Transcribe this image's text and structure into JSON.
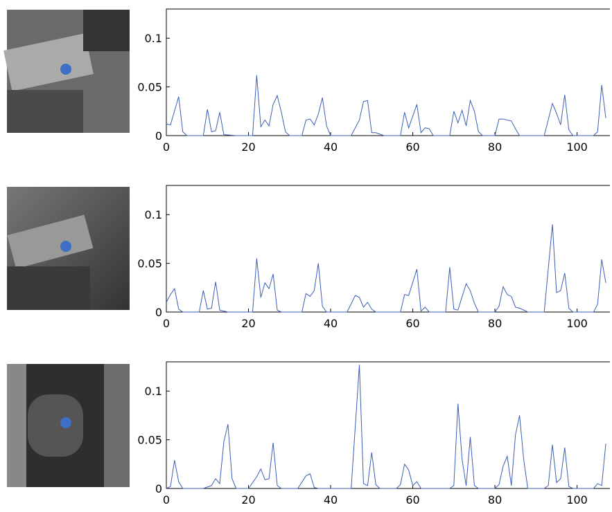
{
  "chart_data": [
    {
      "type": "line",
      "color": "#3a5db5",
      "xlim": [
        0,
        108
      ],
      "xticks": [
        0,
        20,
        40,
        60,
        80,
        100
      ],
      "ylim": [
        0,
        0.13
      ],
      "yticks": [
        0,
        0.05,
        0.1
      ],
      "x": [
        0,
        1,
        3,
        4,
        5,
        9,
        10,
        11,
        12,
        13,
        14,
        17,
        21,
        22,
        23,
        24,
        25,
        26,
        27,
        28,
        29,
        30,
        33,
        34,
        35,
        36,
        37,
        38,
        39,
        40,
        45,
        47,
        48,
        49,
        50,
        51,
        53,
        57,
        58,
        59,
        61,
        62,
        63,
        64,
        65,
        69,
        70,
        71,
        72,
        73,
        74,
        75,
        76,
        77,
        80,
        81,
        82,
        84,
        85,
        86,
        92,
        94,
        95,
        96,
        97,
        98,
        99,
        104,
        105,
        106,
        107
      ],
      "values": [
        0.012,
        0.011,
        0.04,
        0.004,
        0,
        0,
        0.027,
        0.004,
        0.005,
        0.024,
        0.001,
        0,
        0,
        0.062,
        0.009,
        0.016,
        0.01,
        0.032,
        0.041,
        0.024,
        0.004,
        0,
        0,
        0.016,
        0.017,
        0.011,
        0.022,
        0.039,
        0.01,
        0,
        0,
        0.016,
        0.035,
        0.036,
        0.003,
        0.003,
        0,
        0,
        0.024,
        0.008,
        0.032,
        0.003,
        0.008,
        0.007,
        0,
        0,
        0.025,
        0.013,
        0.026,
        0.01,
        0.036,
        0.025,
        0.004,
        0,
        0,
        0.017,
        0.017,
        0.015,
        0.007,
        0,
        0,
        0.033,
        0.023,
        0.011,
        0.042,
        0.006,
        0,
        0,
        0.004,
        0.052,
        0.018
      ]
    },
    {
      "type": "line",
      "color": "#3a5db5",
      "xlim": [
        0,
        108
      ],
      "xticks": [
        0,
        20,
        40,
        60,
        80,
        100
      ],
      "ylim": [
        0,
        0.13
      ],
      "yticks": [
        0,
        0.05,
        0.1
      ],
      "x": [
        0,
        1,
        2,
        3,
        4,
        8,
        9,
        10,
        11,
        12,
        13,
        15,
        21,
        22,
        23,
        24,
        25,
        26,
        27,
        28,
        33,
        34,
        35,
        36,
        37,
        38,
        39,
        44,
        46,
        47,
        48,
        49,
        50,
        51,
        57,
        58,
        59,
        61,
        62,
        63,
        64,
        68,
        69,
        70,
        71,
        73,
        74,
        75,
        76,
        80,
        81,
        82,
        83,
        84,
        85,
        86,
        88,
        92,
        94,
        95,
        96,
        97,
        98,
        99,
        104,
        105,
        106,
        107
      ],
      "values": [
        0.01,
        0.018,
        0.024,
        0.003,
        0,
        0,
        0.022,
        0.003,
        0.004,
        0.031,
        0.002,
        0,
        0,
        0.055,
        0.015,
        0.03,
        0.024,
        0.039,
        0.002,
        0,
        0,
        0.019,
        0.016,
        0.022,
        0.05,
        0.006,
        0,
        0,
        0.017,
        0.015,
        0.005,
        0.01,
        0.003,
        0,
        0,
        0.018,
        0.017,
        0.044,
        0.001,
        0.005,
        0,
        0,
        0.046,
        0.003,
        0.002,
        0.029,
        0.022,
        0.009,
        0,
        0,
        0.006,
        0.026,
        0.018,
        0.016,
        0.005,
        0.004,
        0,
        0,
        0.09,
        0.02,
        0.022,
        0.04,
        0.004,
        0,
        0,
        0.008,
        0.054,
        0.03
      ]
    },
    {
      "type": "line",
      "color": "#3a5db5",
      "xlim": [
        0,
        108
      ],
      "xticks": [
        0,
        20,
        40,
        60,
        80,
        100
      ],
      "ylim": [
        0,
        0.13
      ],
      "yticks": [
        0,
        0.05,
        0.1
      ],
      "x": [
        0,
        1,
        2,
        3,
        4,
        9,
        11,
        12,
        13,
        14,
        15,
        16,
        17,
        20,
        22,
        23,
        24,
        25,
        26,
        27,
        28,
        32,
        34,
        35,
        36,
        37,
        45,
        47,
        48,
        49,
        50,
        51,
        52,
        56,
        57,
        58,
        59,
        60,
        61,
        62,
        69,
        70,
        71,
        72,
        73,
        74,
        75,
        76,
        80,
        81,
        82,
        83,
        84,
        85,
        86,
        87,
        88,
        92,
        93,
        94,
        95,
        96,
        97,
        98,
        99,
        104,
        105,
        106,
        107
      ],
      "values": [
        0,
        0.002,
        0.029,
        0.007,
        0,
        0,
        0.003,
        0.01,
        0.005,
        0.048,
        0.066,
        0.01,
        0,
        0,
        0.012,
        0.02,
        0.009,
        0.01,
        0.047,
        0.003,
        0,
        0,
        0.013,
        0.015,
        0.001,
        0,
        0,
        0.127,
        0.005,
        0.003,
        0.037,
        0.004,
        0,
        0,
        0.004,
        0.025,
        0.019,
        0.003,
        0.007,
        0,
        0,
        0.003,
        0.087,
        0.03,
        0.003,
        0.053,
        0.003,
        0,
        0,
        0.004,
        0.023,
        0.033,
        0.003,
        0.055,
        0.075,
        0.03,
        0,
        0,
        0.003,
        0.045,
        0.006,
        0.01,
        0.042,
        0.002,
        0,
        0,
        0.005,
        0.003,
        0.046
      ]
    }
  ]
}
